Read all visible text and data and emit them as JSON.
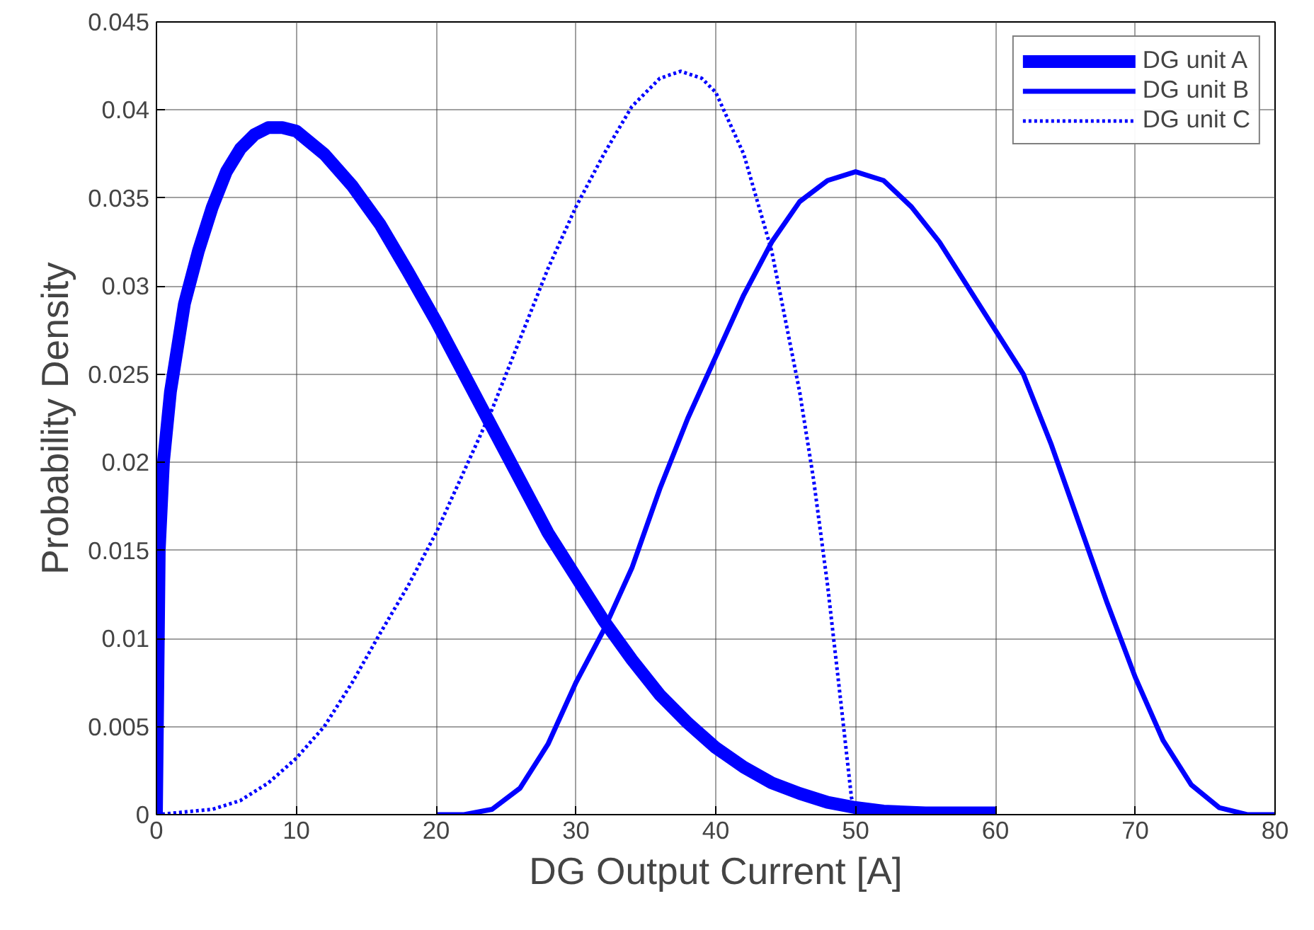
{
  "chart_data": {
    "type": "line",
    "xlabel": "DG Output Current [A]",
    "ylabel": "Probability Density",
    "xlim": [
      0,
      80
    ],
    "ylim": [
      0,
      0.045
    ],
    "xticks": [
      0,
      10,
      20,
      30,
      40,
      50,
      60,
      70,
      80
    ],
    "yticks": [
      0,
      0.005,
      0.01,
      0.015,
      0.02,
      0.025,
      0.03,
      0.035,
      0.04,
      0.045
    ],
    "grid": true,
    "legend": "top right",
    "marker": "none",
    "series": [
      {
        "name": "DG unit A",
        "color": "#0000ff",
        "line_style": "solid",
        "x": [
          0,
          0.2,
          0.5,
          1,
          2,
          3,
          4,
          5,
          6,
          7,
          8,
          9,
          10,
          12,
          14,
          16,
          18,
          20,
          22,
          24,
          26,
          28,
          30,
          32,
          34,
          36,
          38,
          40,
          42,
          44,
          46,
          48,
          50,
          52,
          55,
          60
        ],
        "values": [
          0,
          0.015,
          0.02,
          0.024,
          0.029,
          0.032,
          0.0345,
          0.0365,
          0.0378,
          0.0386,
          0.039,
          0.039,
          0.0388,
          0.0375,
          0.0357,
          0.0335,
          0.0308,
          0.028,
          0.025,
          0.022,
          0.019,
          0.016,
          0.0135,
          0.011,
          0.0088,
          0.0068,
          0.0052,
          0.0038,
          0.0027,
          0.0018,
          0.0012,
          0.0007,
          0.0004,
          0.0002,
          0.0001,
          0.0001
        ]
      },
      {
        "name": "DG unit B",
        "color": "#0000ff",
        "line_style": "solid",
        "x": [
          20,
          22,
          24,
          26,
          28,
          30,
          32,
          34,
          36,
          38,
          40,
          42,
          44,
          46,
          48,
          50,
          52,
          54,
          56,
          58,
          60,
          62,
          64,
          66,
          68,
          70,
          72,
          74,
          76,
          78,
          80
        ],
        "values": [
          0,
          0,
          0.0003,
          0.0015,
          0.004,
          0.0075,
          0.0105,
          0.014,
          0.0185,
          0.0225,
          0.026,
          0.0295,
          0.0325,
          0.0348,
          0.036,
          0.0365,
          0.036,
          0.0345,
          0.0325,
          0.03,
          0.0275,
          0.025,
          0.021,
          0.0165,
          0.012,
          0.0078,
          0.0042,
          0.0017,
          0.0004,
          0,
          0
        ]
      },
      {
        "name": "DG unit C",
        "color": "#0000ff",
        "line_style": "dotted",
        "x": [
          0,
          4,
          6,
          8,
          10,
          12,
          14,
          16,
          18,
          20,
          22,
          24,
          26,
          28,
          30,
          32,
          34,
          36,
          37.5,
          39,
          40,
          42,
          44,
          46,
          47,
          48,
          49,
          49.7,
          50
        ],
        "values": [
          0,
          0.0003,
          0.0008,
          0.0018,
          0.0032,
          0.005,
          0.0075,
          0.0103,
          0.013,
          0.016,
          0.0195,
          0.023,
          0.027,
          0.031,
          0.0345,
          0.0375,
          0.0402,
          0.0418,
          0.0422,
          0.0418,
          0.041,
          0.0375,
          0.032,
          0.024,
          0.019,
          0.013,
          0.006,
          0.001,
          0
        ]
      }
    ]
  }
}
